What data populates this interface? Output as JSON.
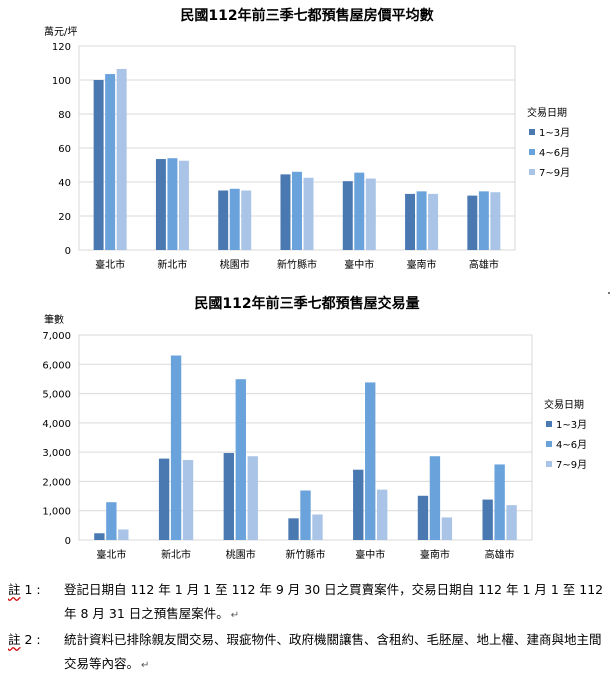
{
  "charts": [
    {
      "type": "bar",
      "title": "民國112年前三季七都預售屋房價平均數",
      "ylabel": "萬元/坪",
      "ylim": [
        0,
        120
      ],
      "yticks": [
        0,
        20,
        40,
        60,
        80,
        100,
        120
      ],
      "yticks_labels": [
        "0",
        "20",
        "40",
        "60",
        "80",
        "100",
        "120"
      ],
      "categories": [
        "臺北市",
        "新北市",
        "桃園市",
        "新竹縣市",
        "臺中市",
        "臺南市",
        "高雄市"
      ],
      "legend_title": "交易日期",
      "legend_position": "right",
      "series": [
        {
          "name": "1~3月",
          "color": "#4a79b2",
          "values": [
            100,
            53.5,
            35,
            44.5,
            40.5,
            33,
            32
          ]
        },
        {
          "name": "4~6月",
          "color": "#6aa2dc",
          "values": [
            103.5,
            54,
            36,
            46,
            45.5,
            34.5,
            34.5
          ]
        },
        {
          "name": "7~9月",
          "color": "#a9c4e6",
          "values": [
            106.5,
            52.5,
            35,
            42.5,
            42,
            33,
            34
          ]
        }
      ]
    },
    {
      "type": "bar",
      "title": "民國112年前三季七都預售屋交易量",
      "ylabel": "筆數",
      "ylim": [
        0,
        7000
      ],
      "yticks": [
        0,
        1000,
        2000,
        3000,
        4000,
        5000,
        6000,
        7000
      ],
      "yticks_labels": [
        "0",
        "1,000",
        "2,000",
        "3,000",
        "4,000",
        "5,000",
        "6,000",
        "7,000"
      ],
      "categories": [
        "臺北市",
        "新北市",
        "桃園市",
        "新竹縣市",
        "臺中市",
        "臺南市",
        "高雄市"
      ],
      "legend_title": "交易日期",
      "legend_position": "right",
      "series": [
        {
          "name": "1~3月",
          "color": "#4a79b2",
          "values": [
            230,
            2780,
            2970,
            740,
            2400,
            1510,
            1380
          ]
        },
        {
          "name": "4~6月",
          "color": "#6aa2dc",
          "values": [
            1290,
            6300,
            5490,
            1690,
            5380,
            2860,
            2580
          ]
        },
        {
          "name": "7~9月",
          "color": "#a9c4e6",
          "values": [
            360,
            2730,
            2860,
            870,
            1720,
            770,
            1190
          ]
        }
      ]
    }
  ],
  "notes": [
    {
      "label_word": "註",
      "label_rest": " 1 :",
      "text": "登記日期自 112 年 1 月 1 至 112 年 9 月 30 日之買賣案件，交易日期自 112 年 1 月 1 至 112 年 8 月 31 日之預售屋案件。"
    },
    {
      "label_word": "註",
      "label_rest": " 2 :",
      "text": "統計資料已排除親友間交易、瑕疵物件、政府機關讓售、含租約、毛胚屋、地上權、建商與地主間交易等內容。"
    }
  ],
  "return_mark": "↵"
}
